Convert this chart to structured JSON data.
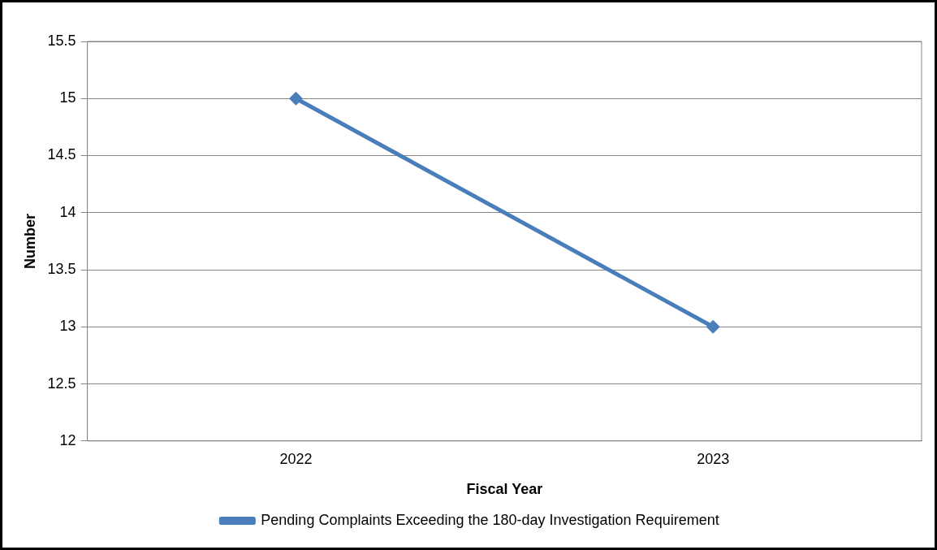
{
  "chart_data": {
    "type": "line",
    "xlabel": "Fiscal Year",
    "ylabel": "Number",
    "categories": [
      "2022",
      "2023"
    ],
    "series": [
      {
        "name": "Pending Complaints Exceeding the 180-day Investigation Requirement",
        "color": "#4a7ebb",
        "values": [
          15,
          13
        ]
      }
    ],
    "ylim": [
      12,
      15.5
    ],
    "yticks": [
      12,
      12.5,
      13,
      13.5,
      14,
      14.5,
      15,
      15.5
    ],
    "grid": "y",
    "legend": "bottom",
    "marker": "diamond",
    "line_style": "solid"
  }
}
